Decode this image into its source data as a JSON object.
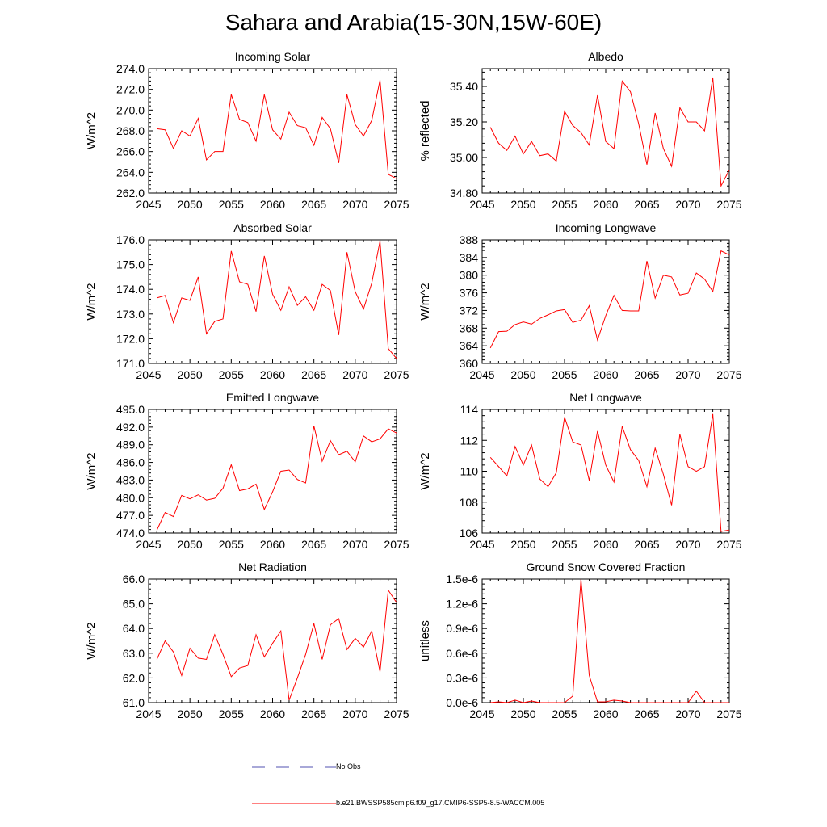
{
  "title": "Sahara and Arabia(15-30N,15W-60E)",
  "colors": {
    "model_line": "#ff0000",
    "obs_line": "#5050b0",
    "axis": "#000000"
  },
  "legend": [
    {
      "label": "No Obs",
      "style": "dashed",
      "color": "#5050b0"
    },
    {
      "label": "b.e21.BWSSP585cmip6.f09_g17.CMIP6-SSP5-8.5-WACCM.005",
      "style": "solid",
      "color": "#ff0000"
    }
  ],
  "chart_data": [
    {
      "type": "line",
      "title": "Incoming Solar",
      "ylabel": "W/m^2",
      "xlabel": "",
      "xlim": [
        2045,
        2075
      ],
      "ylim": [
        262,
        274
      ],
      "xticks": [
        "2045",
        "2050",
        "2055",
        "2060",
        "2065",
        "2070",
        "2075"
      ],
      "yticks": [
        "262.0",
        "264.0",
        "266.0",
        "268.0",
        "270.0",
        "272.0",
        "274.0"
      ],
      "x": [
        2046,
        2047,
        2048,
        2049,
        2050,
        2051,
        2052,
        2053,
        2054,
        2055,
        2056,
        2057,
        2058,
        2059,
        2060,
        2061,
        2062,
        2063,
        2064,
        2065,
        2066,
        2067,
        2068,
        2069,
        2070,
        2071,
        2072,
        2073,
        2074,
        2075
      ],
      "series": [
        {
          "values": [
            268.2,
            268.1,
            266.3,
            268.0,
            267.5,
            269.2,
            265.2,
            266.0,
            266.0,
            271.5,
            269.1,
            268.8,
            267.0,
            271.5,
            268.1,
            267.2,
            269.8,
            268.5,
            268.3,
            266.6,
            269.3,
            268.2,
            264.9,
            271.5,
            268.6,
            267.5,
            269.0,
            272.9,
            263.8,
            263.4
          ]
        }
      ]
    },
    {
      "type": "line",
      "title": "Albedo",
      "ylabel": "% reflected",
      "xlabel": "",
      "xlim": [
        2045,
        2075
      ],
      "ylim": [
        34.8,
        35.5
      ],
      "xticks": [
        "2045",
        "2050",
        "2055",
        "2060",
        "2065",
        "2070",
        "2075"
      ],
      "yticks": [
        "34.80",
        "35.00",
        "35.20",
        "35.40"
      ],
      "x": [
        2046,
        2047,
        2048,
        2049,
        2050,
        2051,
        2052,
        2053,
        2054,
        2055,
        2056,
        2057,
        2058,
        2059,
        2060,
        2061,
        2062,
        2063,
        2064,
        2065,
        2066,
        2067,
        2068,
        2069,
        2070,
        2071,
        2072,
        2073,
        2074,
        2075
      ],
      "series": [
        {
          "values": [
            35.17,
            35.08,
            35.04,
            35.12,
            35.02,
            35.09,
            35.01,
            35.02,
            34.98,
            35.26,
            35.18,
            35.14,
            35.07,
            35.35,
            35.09,
            35.05,
            35.43,
            35.37,
            35.19,
            34.96,
            35.25,
            35.05,
            34.95,
            35.28,
            35.2,
            35.2,
            35.15,
            35.45,
            34.84,
            34.93
          ]
        }
      ]
    },
    {
      "type": "line",
      "title": "Absorbed Solar",
      "ylabel": "W/m^2",
      "xlabel": "",
      "xlim": [
        2045,
        2075
      ],
      "ylim": [
        171,
        176
      ],
      "xticks": [
        "2045",
        "2050",
        "2055",
        "2060",
        "2065",
        "2070",
        "2075"
      ],
      "yticks": [
        "171.0",
        "172.0",
        "173.0",
        "174.0",
        "175.0",
        "176.0"
      ],
      "x": [
        2046,
        2047,
        2048,
        2049,
        2050,
        2051,
        2052,
        2053,
        2054,
        2055,
        2056,
        2057,
        2058,
        2059,
        2060,
        2061,
        2062,
        2063,
        2064,
        2065,
        2066,
        2067,
        2068,
        2069,
        2070,
        2071,
        2072,
        2073,
        2074,
        2075
      ],
      "series": [
        {
          "values": [
            173.65,
            173.75,
            172.65,
            173.65,
            173.55,
            174.5,
            172.2,
            172.7,
            172.8,
            175.55,
            174.3,
            174.2,
            173.1,
            175.35,
            173.8,
            173.15,
            174.1,
            173.35,
            173.7,
            173.15,
            174.2,
            173.95,
            172.15,
            175.5,
            173.9,
            173.2,
            174.25,
            175.95,
            171.6,
            171.2
          ]
        }
      ]
    },
    {
      "type": "line",
      "title": "Incoming Longwave",
      "ylabel": "W/m^2",
      "xlabel": "",
      "xlim": [
        2045,
        2075
      ],
      "ylim": [
        360,
        388
      ],
      "xticks": [
        "2045",
        "2050",
        "2055",
        "2060",
        "2065",
        "2070",
        "2075"
      ],
      "yticks": [
        "360",
        "364",
        "368",
        "372",
        "376",
        "380",
        "384",
        "388"
      ],
      "x": [
        2046,
        2047,
        2048,
        2049,
        2050,
        2051,
        2052,
        2053,
        2054,
        2055,
        2056,
        2057,
        2058,
        2059,
        2060,
        2061,
        2062,
        2063,
        2064,
        2065,
        2066,
        2067,
        2068,
        2069,
        2070,
        2071,
        2072,
        2073,
        2074,
        2075
      ],
      "series": [
        {
          "values": [
            363.5,
            367.2,
            367.3,
            368.8,
            369.4,
            368.9,
            370.2,
            371.0,
            371.9,
            372.2,
            369.3,
            369.8,
            373.1,
            365.3,
            370.8,
            375.4,
            372.0,
            371.9,
            371.9,
            383.2,
            374.8,
            380.0,
            379.6,
            375.5,
            375.9,
            380.5,
            379.1,
            376.3,
            385.5,
            384.6
          ]
        }
      ]
    },
    {
      "type": "line",
      "title": "Emitted Longwave",
      "ylabel": "W/m^2",
      "xlabel": "",
      "xlim": [
        2045,
        2075
      ],
      "ylim": [
        474,
        495
      ],
      "xticks": [
        "2045",
        "2050",
        "2055",
        "2060",
        "2065",
        "2070",
        "2075"
      ],
      "yticks": [
        "474.0",
        "477.0",
        "480.0",
        "483.0",
        "486.0",
        "489.0",
        "492.0",
        "495.0"
      ],
      "x": [
        2046,
        2047,
        2048,
        2049,
        2050,
        2051,
        2052,
        2053,
        2054,
        2055,
        2056,
        2057,
        2058,
        2059,
        2060,
        2061,
        2062,
        2063,
        2064,
        2065,
        2066,
        2067,
        2068,
        2069,
        2070,
        2071,
        2072,
        2073,
        2074,
        2075
      ],
      "series": [
        {
          "values": [
            474.5,
            477.5,
            476.8,
            480.4,
            479.8,
            480.5,
            479.6,
            479.9,
            481.6,
            485.6,
            481.2,
            481.5,
            482.3,
            478.0,
            481.0,
            484.5,
            484.7,
            483.1,
            482.5,
            492.2,
            486.2,
            489.7,
            487.3,
            487.9,
            486.1,
            490.5,
            489.5,
            490.0,
            491.7,
            491.0
          ]
        }
      ]
    },
    {
      "type": "line",
      "title": "Net Longwave",
      "ylabel": "W/m^2",
      "xlabel": "",
      "xlim": [
        2045,
        2075
      ],
      "ylim": [
        106,
        114
      ],
      "xticks": [
        "2045",
        "2050",
        "2055",
        "2060",
        "2065",
        "2070",
        "2075"
      ],
      "yticks": [
        "106",
        "108",
        "110",
        "112",
        "114"
      ],
      "x": [
        2046,
        2047,
        2048,
        2049,
        2050,
        2051,
        2052,
        2053,
        2054,
        2055,
        2056,
        2057,
        2058,
        2059,
        2060,
        2061,
        2062,
        2063,
        2064,
        2065,
        2066,
        2067,
        2068,
        2069,
        2070,
        2071,
        2072,
        2073,
        2074,
        2075
      ],
      "series": [
        {
          "values": [
            110.9,
            110.3,
            109.7,
            111.6,
            110.4,
            111.7,
            109.5,
            109.0,
            109.9,
            113.5,
            111.9,
            111.7,
            109.4,
            112.6,
            110.4,
            109.3,
            112.9,
            111.4,
            110.7,
            109.0,
            111.5,
            109.8,
            107.8,
            112.4,
            110.3,
            110.0,
            110.3,
            113.7,
            106.1,
            106.2
          ]
        }
      ]
    },
    {
      "type": "line",
      "title": "Net Radiation",
      "ylabel": "W/m^2",
      "xlabel": "",
      "xlim": [
        2045,
        2075
      ],
      "ylim": [
        61,
        66
      ],
      "xticks": [
        "2045",
        "2050",
        "2055",
        "2060",
        "2065",
        "2070",
        "2075"
      ],
      "yticks": [
        "61.0",
        "62.0",
        "63.0",
        "64.0",
        "65.0",
        "66.0"
      ],
      "x": [
        2046,
        2047,
        2048,
        2049,
        2050,
        2051,
        2052,
        2053,
        2054,
        2055,
        2056,
        2057,
        2058,
        2059,
        2060,
        2061,
        2062,
        2063,
        2064,
        2065,
        2066,
        2067,
        2068,
        2069,
        2070,
        2071,
        2072,
        2073,
        2074,
        2075
      ],
      "series": [
        {
          "values": [
            62.75,
            63.5,
            63.05,
            62.1,
            63.2,
            62.8,
            62.75,
            63.75,
            62.95,
            62.05,
            62.4,
            62.5,
            63.75,
            62.85,
            63.4,
            63.9,
            61.1,
            62.0,
            62.95,
            64.2,
            62.75,
            64.15,
            64.4,
            63.15,
            63.6,
            63.25,
            63.9,
            62.25,
            65.55,
            65.05
          ]
        }
      ]
    },
    {
      "type": "line",
      "title": "Ground Snow Covered Fraction",
      "ylabel": "unitless",
      "xlabel": "",
      "xlim": [
        2045,
        2075
      ],
      "ylim": [
        0,
        1.5e-06
      ],
      "xticks": [
        "2045",
        "2050",
        "2055",
        "2060",
        "2065",
        "2070",
        "2075"
      ],
      "yticks": [
        "0.0e-6",
        "0.3e-6",
        "0.6e-6",
        "0.9e-6",
        "1.2e-6",
        "1.5e-6"
      ],
      "x": [
        2046,
        2047,
        2048,
        2049,
        2050,
        2051,
        2052,
        2053,
        2054,
        2055,
        2056,
        2057,
        2058,
        2059,
        2060,
        2061,
        2062,
        2063,
        2064,
        2065,
        2066,
        2067,
        2068,
        2069,
        2070,
        2071,
        2072,
        2073,
        2074,
        2075
      ],
      "series": [
        {
          "values": [
            0.0,
            1e-08,
            0.0,
            3e-08,
            0.0,
            2e-08,
            0.0,
            0.0,
            0.0,
            0.0,
            8e-08,
            1.5e-06,
            3.3e-07,
            1e-08,
            1e-08,
            3e-08,
            2e-08,
            0.0,
            0.0,
            0.0,
            0.0,
            0.0,
            0.0,
            0.0,
            0.0,
            1.4e-07,
            0.0,
            0.0,
            0.0,
            0.0
          ]
        }
      ]
    }
  ]
}
